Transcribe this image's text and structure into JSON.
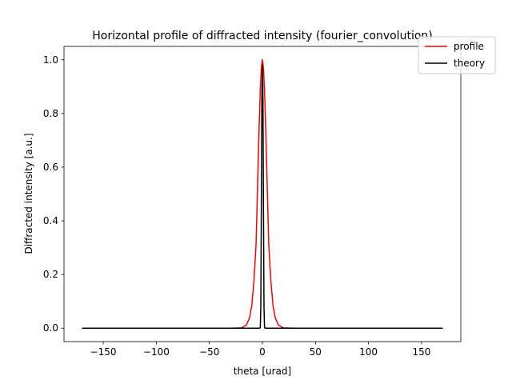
{
  "chart_data": {
    "type": "line",
    "title": "Horizontal profile of diffracted intensity (fourier_convolution)",
    "xlabel": "theta [urad]",
    "ylabel": "Diffracted intensity [a.u.]",
    "xlim": [
      -187,
      187
    ],
    "ylim": [
      -0.05,
      1.05
    ],
    "xticks": [
      -150,
      -100,
      -50,
      0,
      50,
      100,
      150
    ],
    "xtick_labels": [
      "−150",
      "−100",
      "−50",
      "0",
      "50",
      "100",
      "150"
    ],
    "yticks": [
      0.0,
      0.2,
      0.4,
      0.6,
      0.8,
      1.0
    ],
    "ytick_labels": [
      "0.0",
      "0.2",
      "0.4",
      "0.6",
      "0.8",
      "1.0"
    ],
    "grid": false,
    "legend_position": "top-right",
    "series": [
      {
        "name": "profile",
        "color": "#ff0000",
        "x": [
          -170,
          -30,
          -20,
          -15,
          -12,
          -10,
          -8,
          -6,
          -5,
          -4,
          -3,
          -2,
          -1,
          0,
          1,
          2,
          3,
          4,
          5,
          6,
          8,
          10,
          12,
          15,
          20,
          30,
          170
        ],
        "y": [
          0,
          0,
          0.001,
          0.012,
          0.04,
          0.085,
          0.175,
          0.31,
          0.46,
          0.615,
          0.76,
          0.885,
          0.97,
          1.0,
          0.97,
          0.885,
          0.76,
          0.615,
          0.46,
          0.31,
          0.175,
          0.085,
          0.04,
          0.012,
          0.001,
          0,
          0
        ]
      },
      {
        "name": "theory",
        "color": "#000000",
        "x": [
          -170,
          -3,
          -2,
          -1.5,
          -1,
          -0.5,
          0,
          0.5,
          1,
          1.5,
          2,
          3,
          170
        ],
        "y": [
          0,
          0,
          0.002,
          0.08,
          0.45,
          0.86,
          0.98,
          0.86,
          0.45,
          0.08,
          0.002,
          0,
          0
        ]
      }
    ]
  }
}
